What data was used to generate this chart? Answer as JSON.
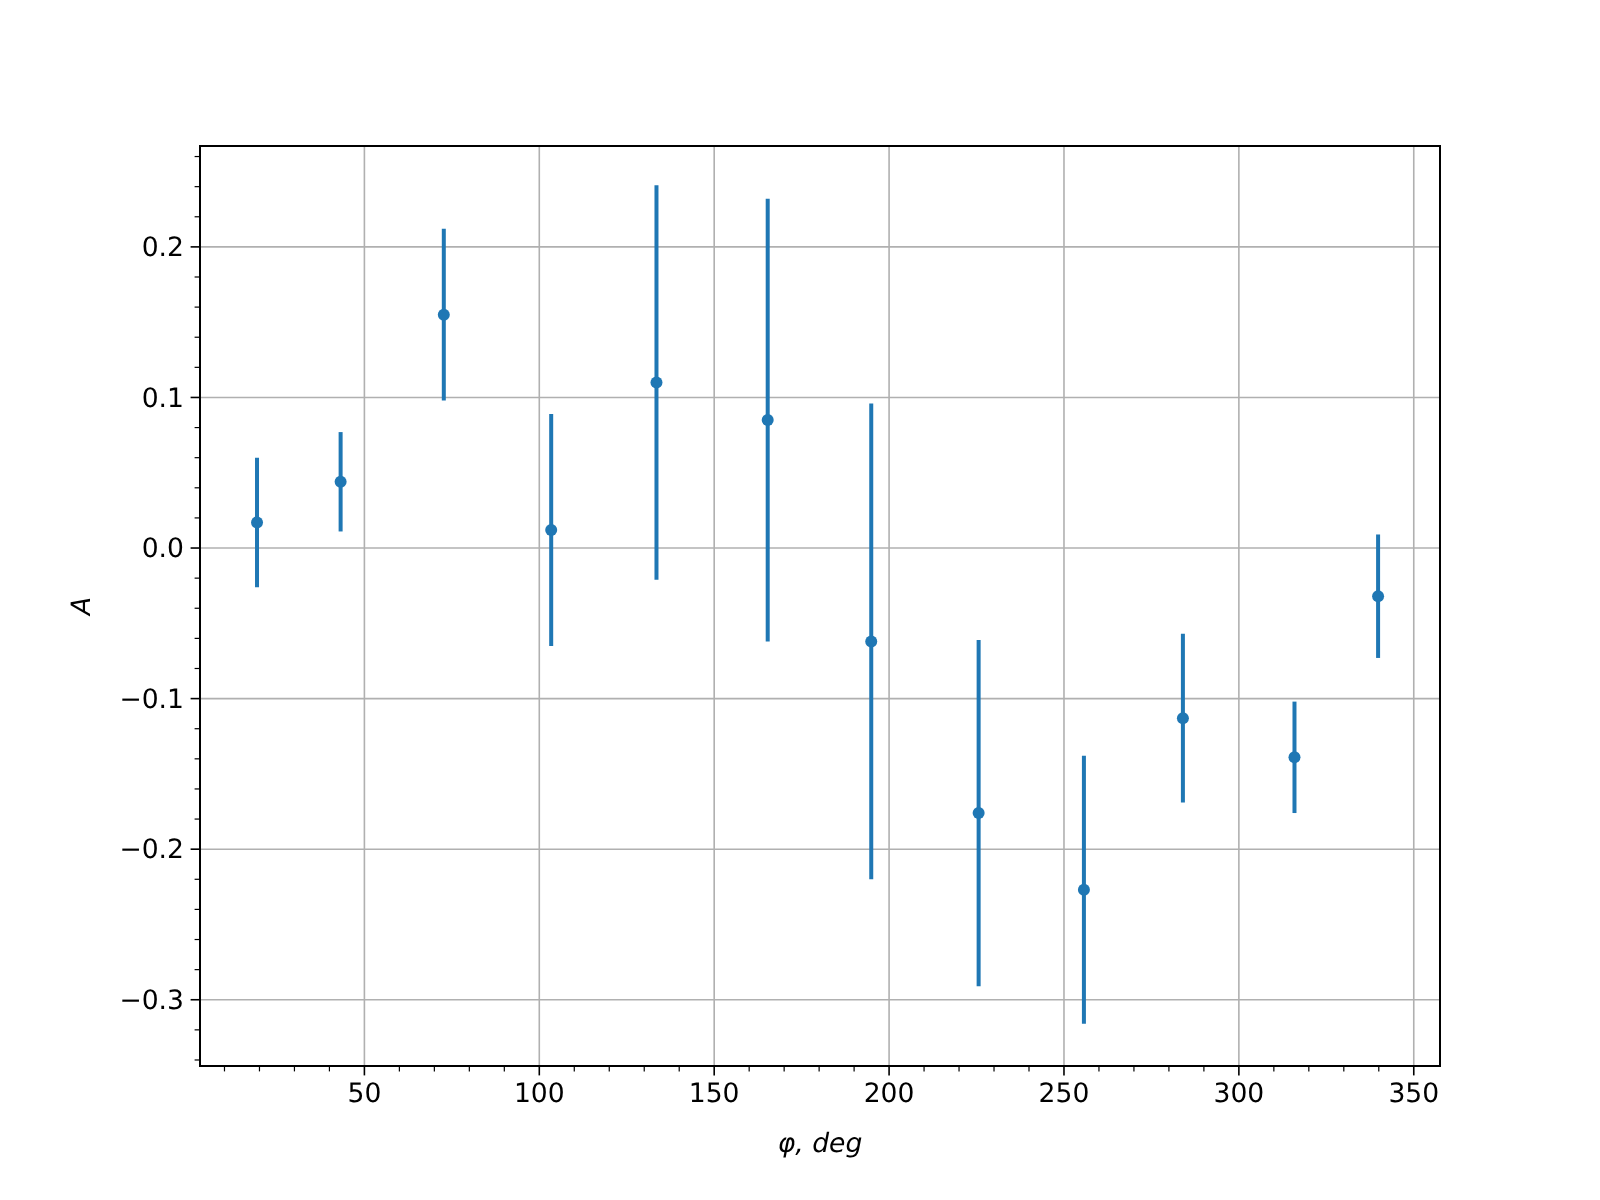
{
  "chart_data": {
    "type": "scatter",
    "xlabel": "φ, deg",
    "ylabel": "A",
    "xlim": [
      3,
      357.5
    ],
    "ylim": [
      -0.344,
      0.267
    ],
    "xticks": [
      {
        "value": 10,
        "label": null
      },
      {
        "value": 20,
        "label": null
      },
      {
        "value": 30,
        "label": null
      },
      {
        "value": 40,
        "label": null
      },
      50,
      {
        "value": 60,
        "label": null
      },
      {
        "value": 70,
        "label": null
      },
      {
        "value": 80,
        "label": null
      },
      {
        "value": 90,
        "label": null
      },
      100,
      {
        "value": 110,
        "label": null
      },
      {
        "value": 120,
        "label": null
      },
      {
        "value": 130,
        "label": null
      },
      {
        "value": 140,
        "label": null
      },
      150,
      {
        "value": 160,
        "label": null
      },
      {
        "value": 170,
        "label": null
      },
      {
        "value": 180,
        "label": null
      },
      {
        "value": 190,
        "label": null
      },
      200,
      {
        "value": 210,
        "label": null
      },
      {
        "value": 220,
        "label": null
      },
      {
        "value": 230,
        "label": null
      },
      {
        "value": 240,
        "label": null
      },
      250,
      {
        "value": 260,
        "label": null
      },
      {
        "value": 270,
        "label": null
      },
      {
        "value": 280,
        "label": null
      },
      {
        "value": 290,
        "label": null
      },
      300,
      {
        "value": 310,
        "label": null
      },
      {
        "value": 320,
        "label": null
      },
      {
        "value": 330,
        "label": null
      },
      {
        "value": 340,
        "label": null
      },
      350
    ],
    "yticks": [
      {
        "value": -0.34,
        "label": null
      },
      {
        "value": -0.32,
        "label": null
      },
      {
        "value": -0.3,
        "label": "−0.3"
      },
      {
        "value": -0.28,
        "label": null
      },
      {
        "value": -0.26,
        "label": null
      },
      {
        "value": -0.24,
        "label": null
      },
      {
        "value": -0.22,
        "label": null
      },
      {
        "value": -0.2,
        "label": "−0.2"
      },
      {
        "value": -0.18,
        "label": null
      },
      {
        "value": -0.16,
        "label": null
      },
      {
        "value": -0.14,
        "label": null
      },
      {
        "value": -0.12,
        "label": null
      },
      {
        "value": -0.1,
        "label": "−0.1"
      },
      {
        "value": -0.08,
        "label": null
      },
      {
        "value": -0.06,
        "label": null
      },
      {
        "value": -0.04,
        "label": null
      },
      {
        "value": -0.02,
        "label": null
      },
      {
        "value": 0,
        "label": "0.0"
      },
      {
        "value": 0.02,
        "label": null
      },
      {
        "value": 0.04,
        "label": null
      },
      {
        "value": 0.06,
        "label": null
      },
      {
        "value": 0.08,
        "label": null
      },
      {
        "value": 0.1,
        "label": "0.1"
      },
      {
        "value": 0.12,
        "label": null
      },
      {
        "value": 0.14,
        "label": null
      },
      {
        "value": 0.16,
        "label": null
      },
      {
        "value": 0.18,
        "label": null
      },
      {
        "value": 0.2,
        "label": "0.2"
      },
      {
        "value": 0.22,
        "label": null
      },
      {
        "value": 0.24,
        "label": null
      },
      {
        "value": 0.26,
        "label": null
      }
    ],
    "grid": true,
    "marker": "circle",
    "series": [
      {
        "color": "#1f77b4",
        "x": [
          19.3,
          43.2,
          72.7,
          103.4,
          133.5,
          165.3,
          194.9,
          225.6,
          255.7,
          284,
          315.9,
          339.8
        ],
        "values": [
          0.017,
          0.044,
          0.155,
          0.012,
          0.11,
          0.085,
          -0.062,
          -0.176,
          -0.227,
          -0.113,
          -0.139,
          -0.032
        ],
        "errors": [
          0.043,
          0.033,
          0.057,
          0.077,
          0.131,
          0.147,
          0.158,
          0.115,
          0.089,
          0.056,
          0.037,
          0.041
        ]
      }
    ]
  }
}
